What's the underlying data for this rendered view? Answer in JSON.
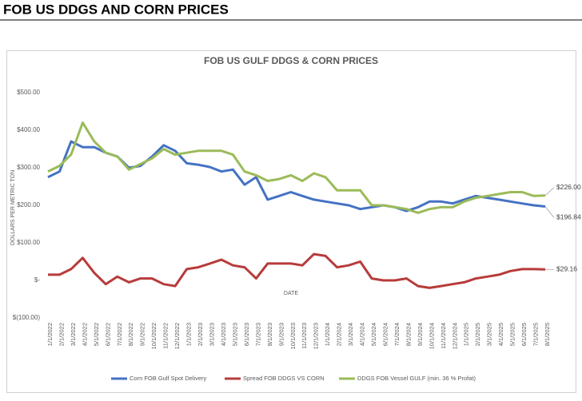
{
  "header": {
    "title": "FOB US DDGS AND CORN PRICES"
  },
  "chart_data": {
    "type": "line",
    "title": "FOB US GULF DDGS & CORN PRICES",
    "x_label": "DATE",
    "y_label": "DOLLARS PER METRIC TON",
    "categories": [
      "1/1/2022",
      "2/1/2022",
      "3/1/2022",
      "4/1/2022",
      "5/1/2022",
      "6/1/2022",
      "7/1/2022",
      "8/1/2022",
      "9/1/2022",
      "10/1/2022",
      "11/1/2022",
      "12/1/2022",
      "1/1/2023",
      "2/1/2023",
      "3/1/2023",
      "4/1/2023",
      "5/1/2023",
      "6/1/2023",
      "7/1/2023",
      "8/1/2023",
      "9/1/2023",
      "10/1/2023",
      "11/1/2023",
      "12/1/2023",
      "1/1/2024",
      "2/1/2024",
      "3/1/2024",
      "4/1/2024",
      "5/1/2024",
      "6/1/2024",
      "7/1/2024",
      "8/1/2024",
      "9/1/2024",
      "10/1/2024",
      "11/1/2024",
      "12/1/2024",
      "1/1/2025",
      "2/1/2025",
      "3/1/2025",
      "4/1/2025",
      "5/1/2025",
      "6/1/2025",
      "7/1/2025",
      "8/1/2025"
    ],
    "series": [
      {
        "name": "Corn FOB Gulf Spot Delivery",
        "color": "#4472c4",
        "values": [
          275,
          290,
          370,
          355,
          355,
          340,
          330,
          300,
          305,
          330,
          360,
          345,
          312,
          308,
          302,
          290,
          295,
          255,
          275,
          215,
          225,
          235,
          225,
          215,
          210,
          205,
          200,
          190,
          195,
          200,
          195,
          185,
          195,
          210,
          210,
          205,
          215,
          225,
          220,
          215,
          210,
          205,
          200,
          196.84
        ],
        "value_labels": [
          null,
          null,
          null,
          null,
          null,
          null,
          null,
          null,
          null,
          null,
          null,
          null,
          null,
          null,
          null,
          null,
          null,
          null,
          null,
          null,
          null,
          null,
          null,
          null,
          null,
          null,
          null,
          null,
          null,
          null,
          null,
          null,
          null,
          null,
          null,
          null,
          null,
          null,
          null,
          null,
          null,
          null,
          null,
          "$196.84"
        ]
      },
      {
        "name": "Spread FOB DDGS VS CORN",
        "color": "#b83b3b",
        "values": [
          15,
          15,
          30,
          60,
          20,
          -10,
          10,
          -5,
          5,
          5,
          -10,
          -15,
          30,
          35,
          45,
          55,
          40,
          35,
          5,
          45,
          45,
          45,
          40,
          70,
          65,
          35,
          40,
          50,
          5,
          0,
          0,
          5,
          -15,
          -20,
          -15,
          -10,
          -5,
          5,
          10,
          15,
          25,
          30,
          30,
          29.16
        ],
        "value_labels": [
          null,
          null,
          null,
          null,
          null,
          null,
          null,
          null,
          null,
          null,
          null,
          null,
          null,
          null,
          null,
          null,
          null,
          null,
          null,
          null,
          null,
          null,
          null,
          null,
          null,
          null,
          null,
          null,
          null,
          null,
          null,
          null,
          null,
          null,
          null,
          null,
          null,
          null,
          null,
          null,
          null,
          null,
          null,
          "$29.16"
        ]
      },
      {
        "name": "DDGS FOB Vessel GULF  (min. 36 % Profat)",
        "color": "#9bbb59",
        "values": [
          290,
          305,
          335,
          420,
          370,
          340,
          330,
          295,
          310,
          325,
          350,
          335,
          340,
          345,
          345,
          345,
          335,
          290,
          280,
          265,
          270,
          280,
          265,
          285,
          275,
          240,
          240,
          240,
          200,
          200,
          195,
          190,
          180,
          190,
          195,
          195,
          210,
          220,
          225,
          230,
          235,
          235,
          225,
          226
        ],
        "value_labels": [
          null,
          null,
          null,
          null,
          null,
          null,
          null,
          null,
          null,
          null,
          null,
          null,
          null,
          null,
          null,
          null,
          null,
          null,
          null,
          null,
          null,
          null,
          null,
          null,
          null,
          null,
          null,
          null,
          null,
          null,
          null,
          null,
          null,
          null,
          null,
          null,
          null,
          null,
          null,
          null,
          null,
          null,
          null,
          "$226.00"
        ]
      }
    ],
    "ylim": [
      -100,
      500
    ],
    "yticks": [
      {
        "value": -100,
        "label": "$(100.00)"
      },
      {
        "value": 0,
        "label": "$-"
      },
      {
        "value": 100,
        "label": "$100.00"
      },
      {
        "value": 200,
        "label": "$200.00"
      },
      {
        "value": 300,
        "label": "$300.00"
      },
      {
        "value": 400,
        "label": "$400.00"
      },
      {
        "value": 500,
        "label": "$500.00"
      }
    ],
    "grid": false,
    "legend": "bottom"
  }
}
